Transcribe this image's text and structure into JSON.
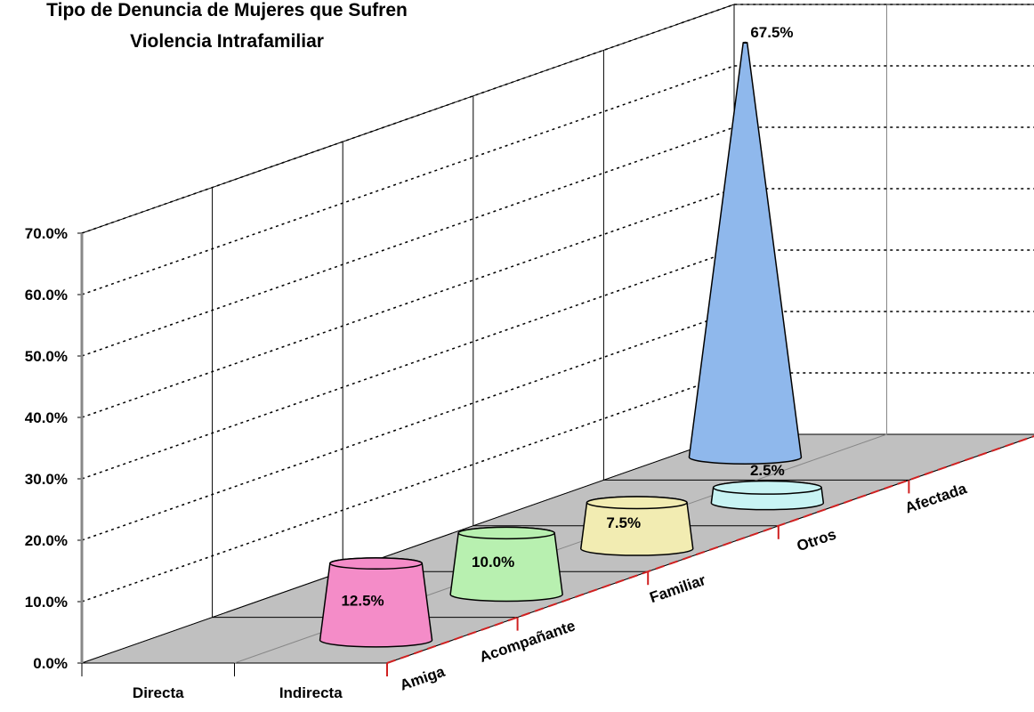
{
  "chart_data": {
    "type": "cone3d",
    "title": [
      "Tipo de Denuncia de Mujeres que Sufren",
      "Violencia Intrafamiliar"
    ],
    "categories": [
      "Directa",
      "Indirecta"
    ],
    "series": [
      {
        "name": "Amiga",
        "color": "#f48cc8",
        "values": [
          null,
          12.5
        ],
        "value_labels": [
          null,
          "12.5%"
        ]
      },
      {
        "name": "Acompañante",
        "color": "#b8f0b0",
        "values": [
          null,
          10.0
        ],
        "value_labels": [
          null,
          "10.0%"
        ]
      },
      {
        "name": "Familiar",
        "color": "#f2ecb2",
        "values": [
          null,
          7.5
        ],
        "value_labels": [
          null,
          "7.5%"
        ]
      },
      {
        "name": "Otros",
        "color": "#c8f4f4",
        "values": [
          null,
          2.5
        ],
        "value_labels": [
          null,
          "2.5%"
        ]
      },
      {
        "name": "Afectada",
        "color": "#8fb8ec",
        "values": [
          67.5,
          null
        ],
        "value_labels": [
          "67.5%",
          null
        ]
      }
    ],
    "ylim": [
      0,
      70
    ],
    "yticks": [
      {
        "value": 0,
        "label": "0.0%"
      },
      {
        "value": 10,
        "label": "10.0%"
      },
      {
        "value": 20,
        "label": "20.0%"
      },
      {
        "value": 30,
        "label": "30.0%"
      },
      {
        "value": 40,
        "label": "40.0%"
      },
      {
        "value": 50,
        "label": "50.0%"
      },
      {
        "value": 60,
        "label": "60.0%"
      },
      {
        "value": 70,
        "label": "70.0%"
      }
    ],
    "grid": true
  }
}
